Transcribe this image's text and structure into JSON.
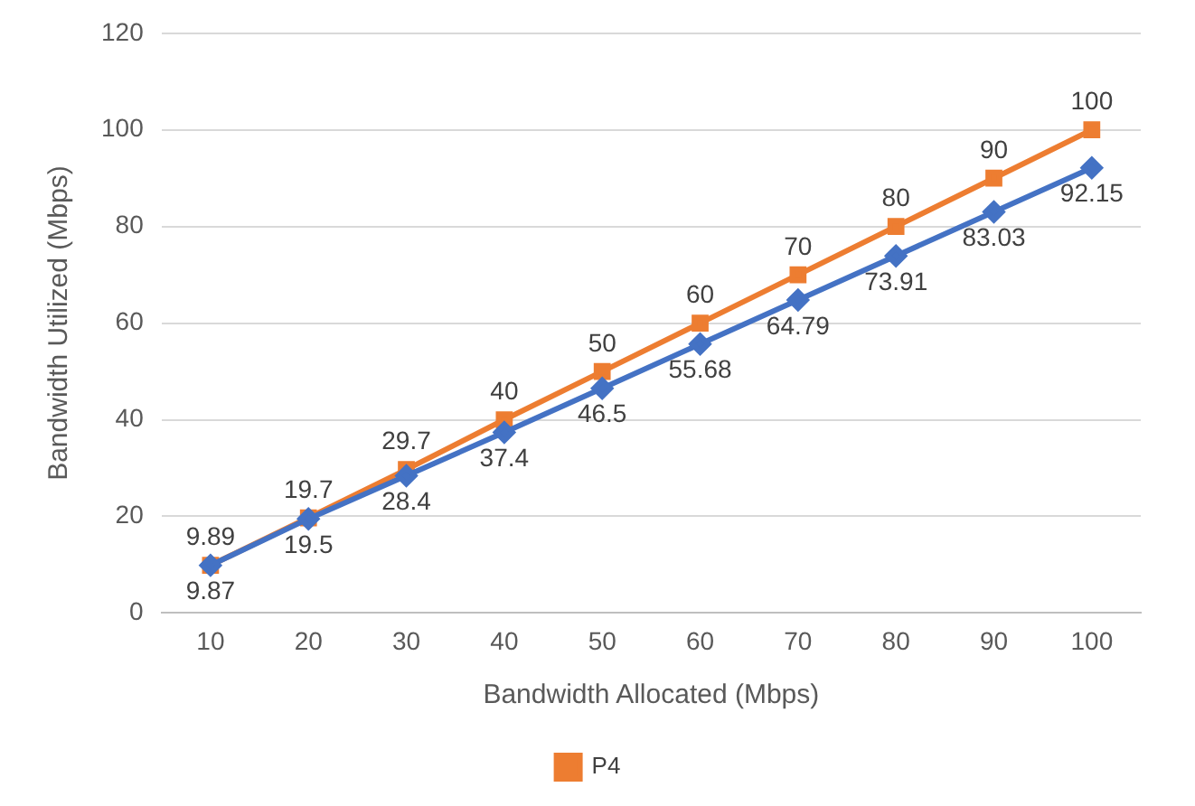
{
  "chart_data": {
    "type": "line",
    "xlabel": "Bandwidth Allocated (Mbps)",
    "ylabel": "Bandwidth Utilized (Mbps)",
    "categories": [
      "10",
      "20",
      "30",
      "40",
      "50",
      "60",
      "70",
      "80",
      "90",
      "100"
    ],
    "series": [
      {
        "color": "#4472c4",
        "marker": "diamond",
        "values": [
          9.87,
          19.5,
          28.4,
          37.4,
          46.5,
          55.68,
          64.79,
          73.91,
          83.03,
          92.15
        ]
      },
      {
        "name": "P4",
        "color": "#ed7d31",
        "marker": "square",
        "values": [
          9.89,
          19.7,
          29.7,
          40,
          50,
          60,
          70,
          80,
          90,
          100
        ]
      }
    ],
    "ylim": [
      0,
      120
    ],
    "yticks": [
      0,
      20,
      40,
      60,
      80,
      100,
      120
    ],
    "grid": "y",
    "legend": "bottom",
    "data_labels": true,
    "line_style": "solid"
  }
}
